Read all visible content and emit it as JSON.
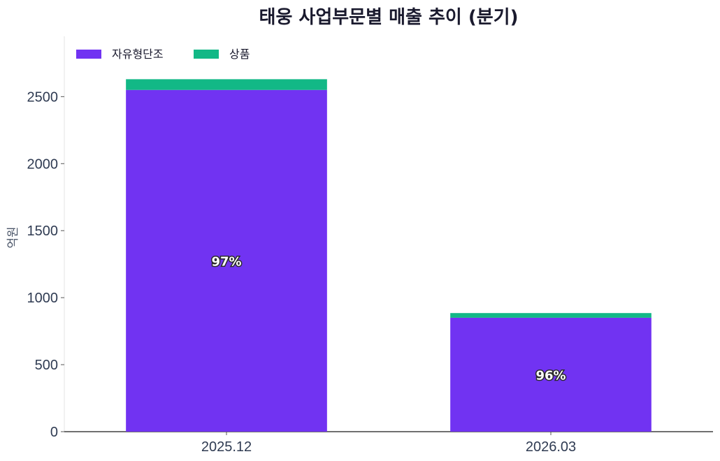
{
  "chart_data": {
    "type": "bar",
    "stacked": true,
    "title": "태웅 사업부문별 매출 추이 (분기)",
    "xlabel": "",
    "ylabel": "억원",
    "categories": [
      "2025.12",
      "2026.03"
    ],
    "series": [
      {
        "name": "자유형단조",
        "values": [
          2550,
          850
        ],
        "color": "#7133f2"
      },
      {
        "name": "상품",
        "values": [
          80,
          35
        ],
        "color": "#12b886"
      }
    ],
    "ylim": [
      0,
      2950
    ],
    "yticks": [
      0,
      500,
      1000,
      1500,
      2000,
      2500
    ],
    "bar_labels": [
      "97%",
      "96%"
    ],
    "legend": "top-left",
    "grid": false
  }
}
